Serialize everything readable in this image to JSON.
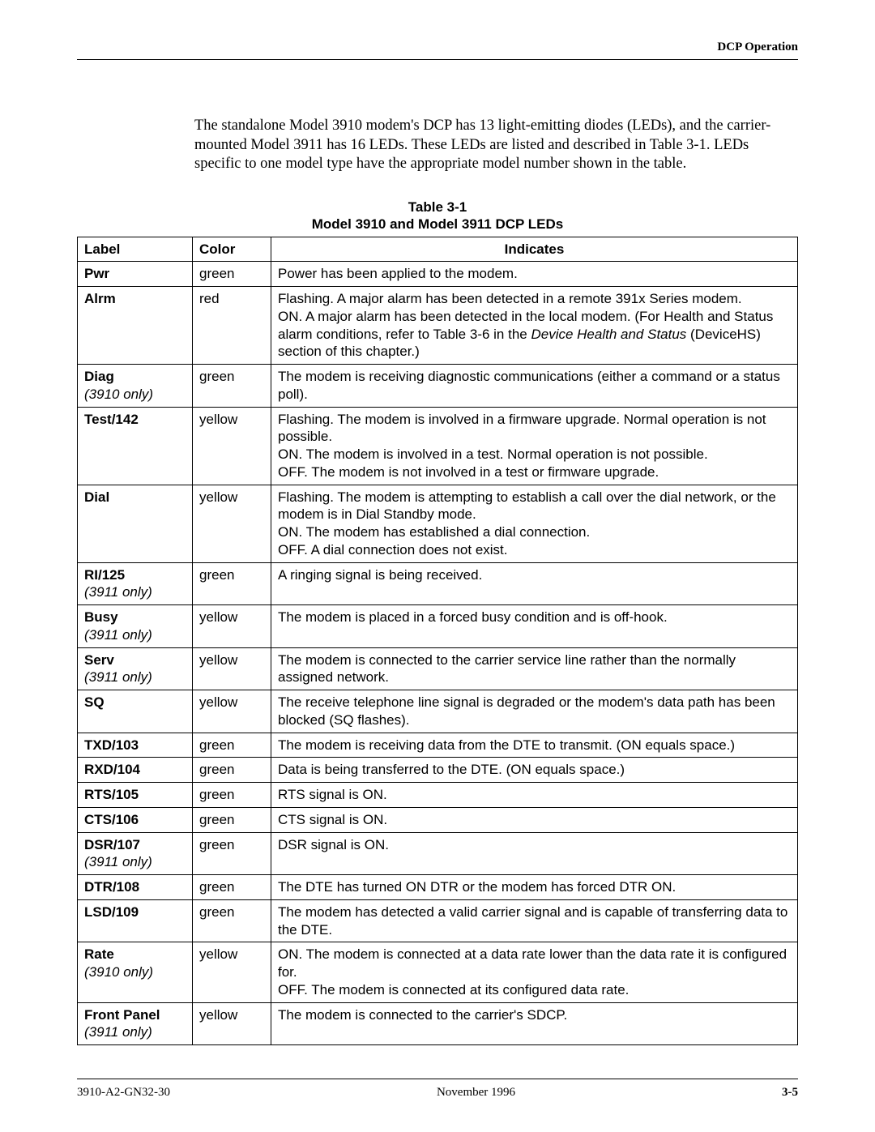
{
  "header": {
    "section": "DCP Operation"
  },
  "intro": "The standalone Model 3910 modem's DCP has 13 light-emitting diodes (LEDs), and the carrier-mounted Model 3911 has 16 LEDs. These LEDs are listed and described in Table 3-1. LEDs specific to one model type have the appropriate model number shown in the table.",
  "table": {
    "caption_line1": "Table 3-1",
    "caption_line2": "Model 3910 and Model 3911 DCP LEDs",
    "headers": {
      "label": "Label",
      "color": "Color",
      "indicates": "Indicates"
    },
    "rows": [
      {
        "label": "Pwr",
        "note": "",
        "color": "green",
        "indicates_html": "Power has been applied to the modem."
      },
      {
        "label": "Alrm",
        "note": "",
        "color": "red",
        "indicates_html": "Flashing. A major alarm has been detected in a remote 391x Series modem.<br>ON. A major alarm has been detected in the local modem. (For Health and Status alarm conditions, refer to Table 3-6 in the <span class=\"italic\">Device Health and Status</span> (DeviceHS) section of this chapter.)"
      },
      {
        "label": "Diag",
        "note": "(3910 only)",
        "color": "green",
        "indicates_html": "The modem is receiving diagnostic communications (either a command or a status poll)."
      },
      {
        "label": "Test/142",
        "note": "",
        "color": "yellow",
        "indicates_html": "Flashing. The modem is involved in a firmware upgrade. Normal operation is not possible.<br>ON. The modem is involved in a test. Normal operation is not possible.<br>OFF. The modem is not involved in a test or firmware upgrade."
      },
      {
        "label": "Dial",
        "note": "",
        "color": "yellow",
        "indicates_html": "Flashing. The modem is attempting to establish a call over the dial network, or the modem is in Dial Standby mode.<br>ON. The modem has established a dial connection.<br>OFF. A dial connection does not exist."
      },
      {
        "label": "RI/125",
        "note": "(3911 only)",
        "color": "green",
        "indicates_html": "A ringing signal is being received."
      },
      {
        "label": "Busy",
        "note": "(3911 only)",
        "color": "yellow",
        "indicates_html": "The modem is placed in a forced busy condition and is off-hook."
      },
      {
        "label": "Serv",
        "note": "(3911 only)",
        "color": "yellow",
        "indicates_html": "The modem is connected to the carrier service line rather than the normally assigned network."
      },
      {
        "label": "SQ",
        "note": "",
        "color": "yellow",
        "indicates_html": "The receive telephone line signal is degraded or the modem's data path has been blocked (SQ flashes)."
      },
      {
        "label": "TXD/103",
        "note": "",
        "color": "green",
        "indicates_html": "The modem is receiving data from the DTE to transmit. (ON equals space.)"
      },
      {
        "label": "RXD/104",
        "note": "",
        "color": "green",
        "indicates_html": "Data is being transferred to the DTE. (ON equals space.)"
      },
      {
        "label": "RTS/105",
        "note": "",
        "color": "green",
        "indicates_html": "RTS signal is ON."
      },
      {
        "label": "CTS/106",
        "note": "",
        "color": "green",
        "indicates_html": "CTS signal is ON."
      },
      {
        "label": "DSR/107",
        "note": "(3911 only)",
        "color": "green",
        "indicates_html": "DSR signal is ON."
      },
      {
        "label": "DTR/108",
        "note": "",
        "color": "green",
        "indicates_html": "The DTE has turned ON DTR or the modem has forced DTR ON."
      },
      {
        "label": "LSD/109",
        "note": "",
        "color": "green",
        "indicates_html": "The modem has detected a valid carrier signal and is capable of transferring data to the DTE."
      },
      {
        "label": "Rate",
        "note": "(3910 only)",
        "color": "yellow",
        "indicates_html": "ON. The modem is connected at a data rate lower than the data rate it is configured for.<br>OFF. The modem is connected at its configured data rate."
      },
      {
        "label": "Front Panel",
        "note": "(3911 only)",
        "color": "yellow",
        "indicates_html": "The modem is connected to the carrier's SDCP."
      }
    ]
  },
  "footer": {
    "left": "3910-A2-GN32-30",
    "center": "November 1996",
    "right": "3-5"
  }
}
